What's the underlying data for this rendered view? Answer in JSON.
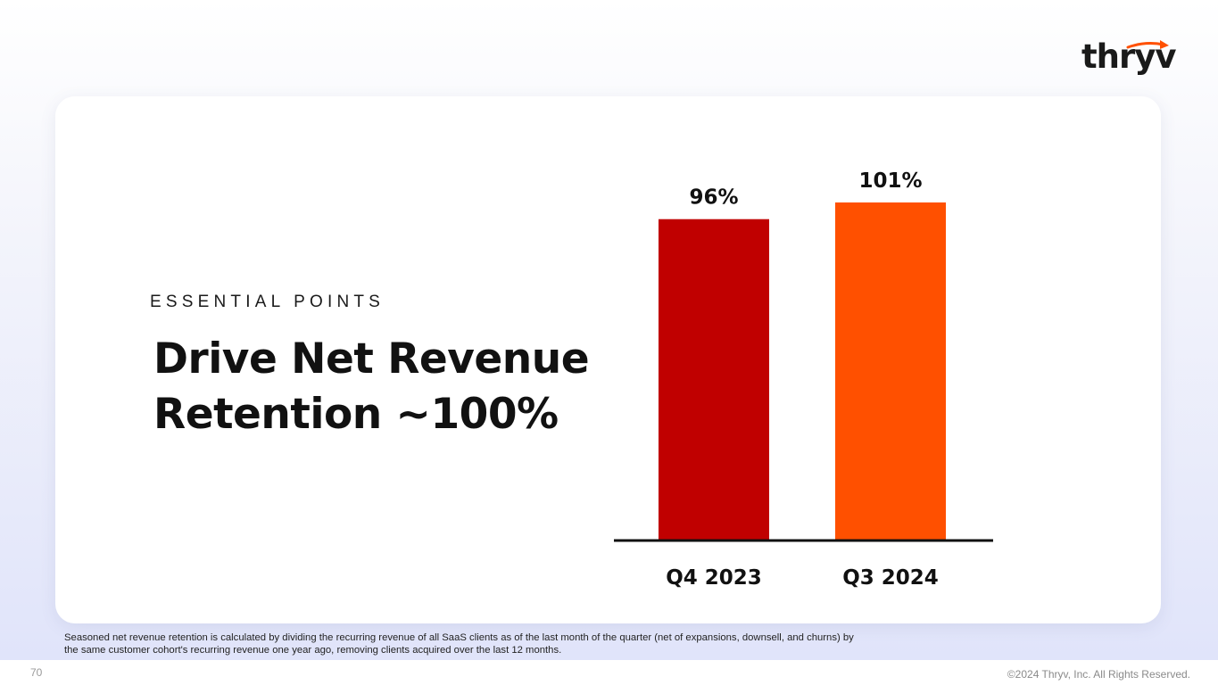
{
  "brand": {
    "logo_text": "thryv",
    "accent_color": "#ff5000",
    "dark_red": "#c00000"
  },
  "slide": {
    "eyebrow": "ESSENTIAL POINTS",
    "headline_line1": "Drive Net Revenue",
    "headline_line2": "Retention ~100%",
    "footnote": "Seasoned net revenue retention is calculated by dividing the recurring revenue of all SaaS clients as of the last month of the quarter (net of expansions, downsell, and churns) by the same customer cohort's recurring revenue one year ago, removing clients acquired over the last 12 months.",
    "page_number": "70",
    "copyright": "©2024 Thryv, Inc. All Rights Reserved."
  },
  "chart_data": {
    "type": "bar",
    "title": "",
    "xlabel": "",
    "ylabel": "",
    "categories": [
      "Q4 2023",
      "Q3 2024"
    ],
    "values": [
      96,
      101
    ],
    "value_labels": [
      "96%",
      "101%"
    ],
    "colors": [
      "#c00000",
      "#ff5000"
    ],
    "ylim": [
      0,
      101
    ],
    "grid": false,
    "legend": "none"
  }
}
